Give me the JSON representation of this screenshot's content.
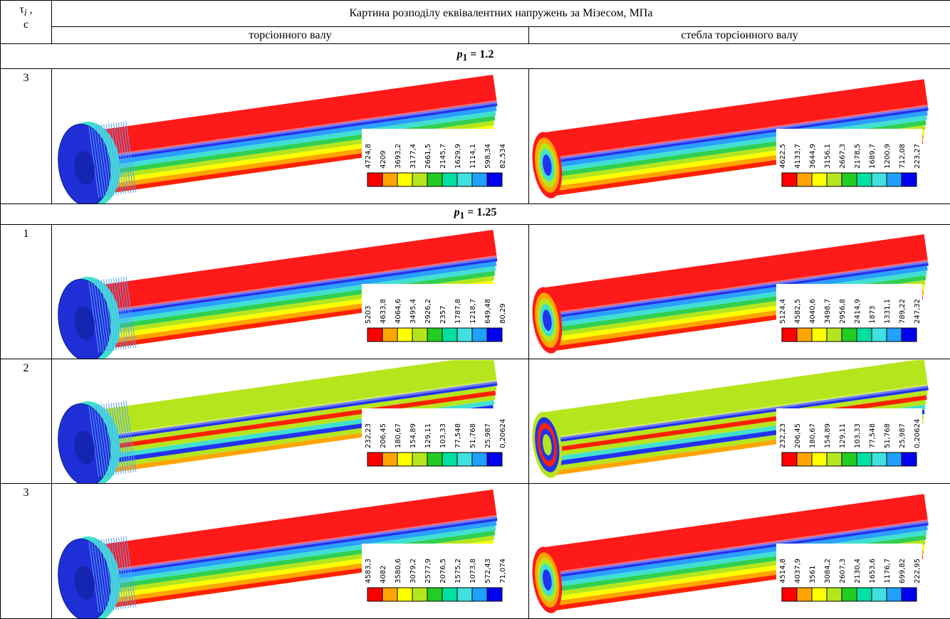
{
  "header": {
    "tau_symbol": "τ",
    "tau_index": "i",
    "tau_comma": ",",
    "tau_unit": "c",
    "title": "Картина розподілу еквівалентних напружень за Мізесом, МПа",
    "col1": "торсіонного валу",
    "col2": "стебла торсіонного валу"
  },
  "sections": [
    {
      "p_symbol": "p",
      "p_index": "1",
      "p_value": "= 1.2",
      "rows": [
        {
          "tau": "3",
          "images": [
            {
              "legend": [
                "4724,8",
                "4209",
                "3693,2",
                "3177,4",
                "2661,5",
                "2145,7",
                "1629,9",
                "1114,1",
                "598,34",
                "82,534"
              ]
            },
            {
              "legend": [
                "4622,5",
                "4133,7",
                "3644,9",
                "3156,1",
                "2667,3",
                "2178,5",
                "1689,7",
                "1200,9",
                "712,08",
                "223,27"
              ]
            }
          ]
        }
      ]
    },
    {
      "p_symbol": "p",
      "p_index": "1",
      "p_value": "= 1.25",
      "rows": [
        {
          "tau": "1",
          "images": [
            {
              "legend": [
                "5203",
                "4633,8",
                "4064,6",
                "3495,4",
                "2926,2",
                "2357",
                "1787,8",
                "1218,7",
                "649,48",
                "80,29"
              ]
            },
            {
              "legend": [
                "5124,4",
                "4582,5",
                "4040,6",
                "3498,7",
                "2956,8",
                "2414,9",
                "1873",
                "1331,1",
                "789,22",
                "247,32"
              ]
            }
          ]
        },
        {
          "tau": "2",
          "images": [
            {
              "legend": [
                "232,23",
                "206,45",
                "180,67",
                "154,89",
                "129,11",
                "103,33",
                "77,548",
                "51,768",
                "25,987",
                "0,20624"
              ]
            },
            {
              "legend": [
                "232,23",
                "206,45",
                "180,67",
                "154,89",
                "129,11",
                "103,33",
                "77,548",
                "51,768",
                "25,987",
                "0,20624"
              ]
            }
          ]
        },
        {
          "tau": "3",
          "images": [
            {
              "legend": [
                "4583,3",
                "4082",
                "3580,6",
                "3079,2",
                "2577,9",
                "2076,5",
                "1575,2",
                "1073,8",
                "572,43",
                "71,074"
              ]
            },
            {
              "legend": [
                "4514,8",
                "4037,9",
                "3561",
                "3084,2",
                "2607,3",
                "2130,4",
                "1653,6",
                "1176,7",
                "699,82",
                "222,95"
              ]
            }
          ]
        }
      ]
    }
  ]
}
